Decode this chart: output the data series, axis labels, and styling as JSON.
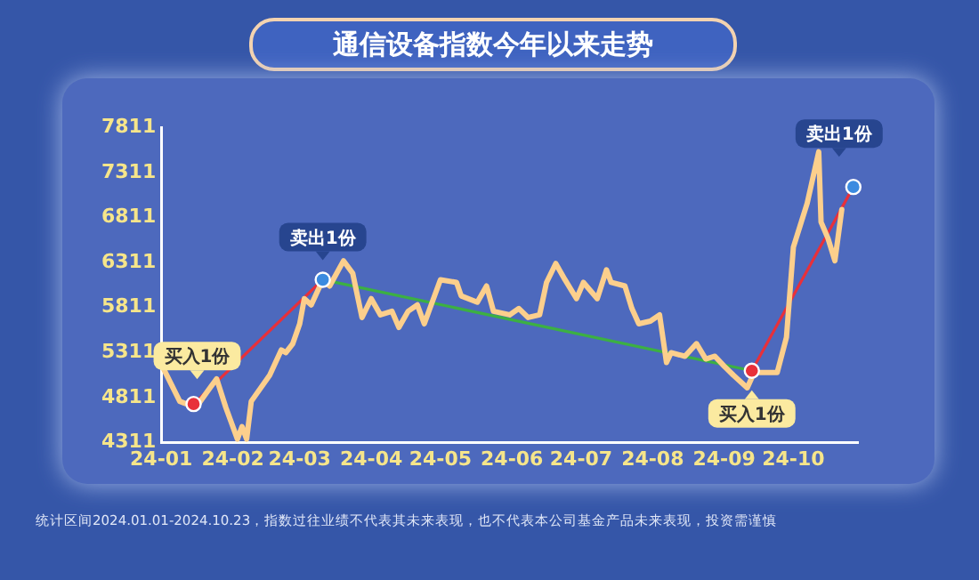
{
  "chart_data": {
    "type": "line",
    "title": "通信设备指数今年以来走势",
    "xlim": [
      "2024-01-01",
      "2024-10-29"
    ],
    "xticks": [
      {
        "value": "2024-01-01",
        "label": "24-01"
      },
      {
        "value": "2024-02-01",
        "label": "24-02"
      },
      {
        "value": "2024-03-01",
        "label": "24-03"
      },
      {
        "value": "2024-04-01",
        "label": "24-04"
      },
      {
        "value": "2024-05-01",
        "label": "24-05"
      },
      {
        "value": "2024-06-01",
        "label": "24-06"
      },
      {
        "value": "2024-07-01",
        "label": "24-07"
      },
      {
        "value": "2024-08-01",
        "label": "24-08"
      },
      {
        "value": "2024-09-01",
        "label": "24-09"
      },
      {
        "value": "2024-10-01",
        "label": "24-10"
      }
    ],
    "ylim": [
      4311,
      7811
    ],
    "yticks": [
      4311,
      4811,
      5311,
      5811,
      6311,
      6811,
      7311,
      7811
    ],
    "grid": false,
    "legend": false,
    "series": [
      {
        "type": "line",
        "color": "#fccf8c",
        "marker": "none",
        "x": [
          "2024-01-02",
          "2024-01-09",
          "2024-01-16",
          "2024-01-21",
          "2024-01-25",
          "2024-01-29",
          "2024-02-03",
          "2024-02-05",
          "2024-02-07",
          "2024-02-09",
          "2024-02-17",
          "2024-02-22",
          "2024-02-24",
          "2024-02-27",
          "2024-03-01",
          "2024-03-03",
          "2024-03-06",
          "2024-03-11",
          "2024-03-14",
          "2024-03-20",
          "2024-03-24",
          "2024-03-28",
          "2024-04-01",
          "2024-04-05",
          "2024-04-10",
          "2024-04-13",
          "2024-04-17",
          "2024-04-21",
          "2024-04-24",
          "2024-04-27",
          "2024-05-01",
          "2024-05-08",
          "2024-05-10",
          "2024-05-17",
          "2024-05-21",
          "2024-05-24",
          "2024-05-31",
          "2024-06-04",
          "2024-06-08",
          "2024-06-13",
          "2024-06-16",
          "2024-06-20",
          "2024-06-24",
          "2024-06-29",
          "2024-07-02",
          "2024-07-08",
          "2024-07-12",
          "2024-07-14",
          "2024-07-20",
          "2024-07-23",
          "2024-07-26",
          "2024-07-31",
          "2024-08-04",
          "2024-08-07",
          "2024-08-09",
          "2024-08-15",
          "2024-08-20",
          "2024-08-24",
          "2024-08-28",
          "2024-09-01",
          "2024-09-05",
          "2024-09-11",
          "2024-09-14",
          "2024-09-24",
          "2024-09-28",
          "2024-10-01",
          "2024-10-07",
          "2024-10-12",
          "2024-10-13",
          "2024-10-16",
          "2024-10-19",
          "2024-10-22"
        ],
        "values": [
          5130,
          4770,
          4700,
          4880,
          5020,
          4700,
          4350,
          4490,
          4350,
          4770,
          5060,
          5340,
          5310,
          5410,
          5630,
          5910,
          5840,
          6120,
          6050,
          6330,
          6190,
          5700,
          5910,
          5730,
          5770,
          5590,
          5770,
          5840,
          5630,
          5840,
          6120,
          6090,
          5940,
          5870,
          6050,
          5770,
          5730,
          5800,
          5700,
          5730,
          6090,
          6300,
          6120,
          5910,
          6090,
          5910,
          6230,
          6090,
          6050,
          5800,
          5630,
          5660,
          5730,
          5200,
          5310,
          5270,
          5410,
          5240,
          5270,
          5160,
          5060,
          4920,
          5090,
          5090,
          5480,
          6480,
          6970,
          7540,
          6760,
          6580,
          6330,
          6900
        ]
      },
      {
        "type": "line",
        "color": "#e8303a",
        "marker": "none",
        "x": [
          "2024-01-15",
          "2024-03-11"
        ],
        "values": [
          4740,
          6120
        ]
      },
      {
        "type": "line",
        "color": "#3cb043",
        "marker": "none",
        "x": [
          "2024-03-11",
          "2024-09-13"
        ],
        "values": [
          6120,
          5110
        ]
      },
      {
        "type": "line",
        "color": "#e8303a",
        "marker": "none",
        "x": [
          "2024-09-13",
          "2024-10-27"
        ],
        "values": [
          5110,
          7150
        ]
      },
      {
        "type": "scatter",
        "marker": "circle",
        "color": "#e8303a",
        "colors": [
          "#e8303a",
          "#3b8be0",
          "#e8303a",
          "#3b8be0"
        ],
        "x": [
          "2024-01-15",
          "2024-03-11",
          "2024-09-13",
          "2024-10-27"
        ],
        "values": [
          4740,
          6120,
          5110,
          7150
        ]
      }
    ],
    "annotations": [
      {
        "text": "买入1份",
        "x": "2024-01-15",
        "y": 4740
      },
      {
        "text": "卖出1份",
        "x": "2024-03-11",
        "y": 6120
      },
      {
        "text": "买入1份",
        "x": "2024-09-13",
        "y": 5110
      },
      {
        "text": "卖出1份",
        "x": "2024-10-27",
        "y": 7150
      },
      "统计区间2024.01.01-2024.10.23，指数过往业绩不代表其未来表现，也不代表本公司基金产品未来表现，投资需谨慎"
    ]
  }
}
